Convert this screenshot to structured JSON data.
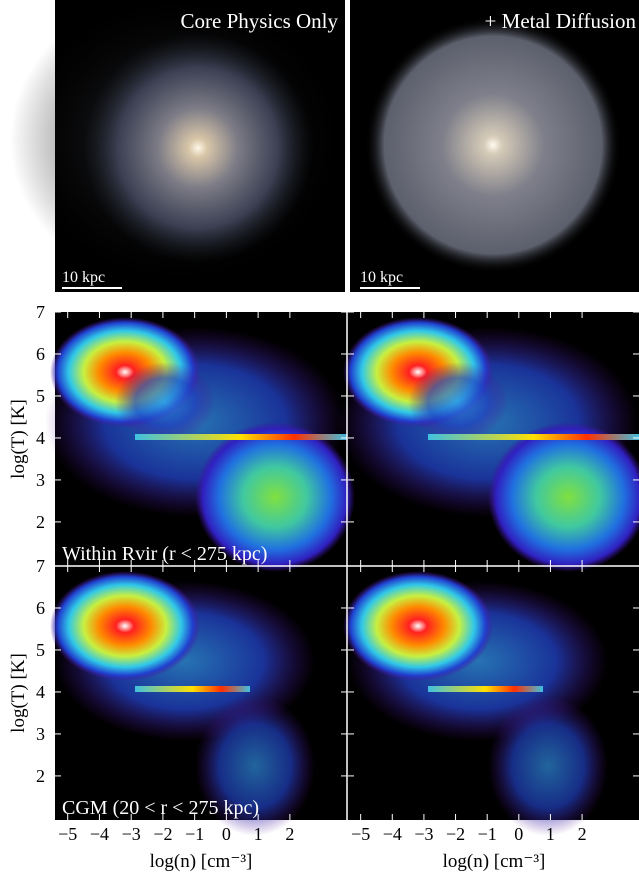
{
  "images": [
    {
      "title": "Core Physics Only",
      "scale_label": "10 kpc"
    },
    {
      "title": "+ Metal Diffusion",
      "scale_label": "10 kpc"
    }
  ],
  "phase_plots": {
    "y_label": "log(T) [K]",
    "x_label": "log(n) [cm⁻³]",
    "xlim": [
      -5.4,
      3.8
    ],
    "ylim": [
      0.95,
      7
    ],
    "xticks": [
      -5,
      -4,
      -3,
      -2,
      -1,
      0,
      1,
      2
    ],
    "yticks": [
      2,
      3,
      4,
      5,
      6,
      7
    ],
    "row_labels": [
      "Within Rvir (r < 275 kpc)",
      "CGM  (20 < r < 275 kpc)"
    ]
  }
}
